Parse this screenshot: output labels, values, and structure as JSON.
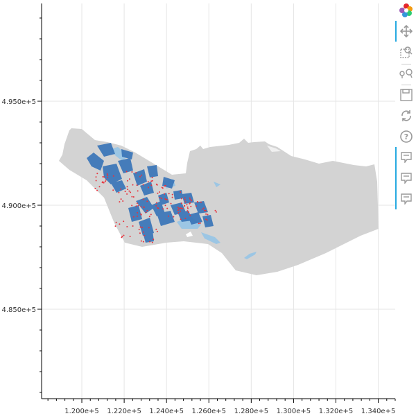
{
  "chart_data": {
    "type": "map",
    "x_ticks": [
      "1.200e+5",
      "1.220e+5",
      "1.240e+5",
      "1.260e+5",
      "1.280e+5",
      "1.300e+5",
      "1.320e+5",
      "1.340e+5"
    ],
    "x_tick_values": [
      120000,
      122000,
      124000,
      126000,
      128000,
      130000,
      132000,
      134000
    ],
    "y_ticks": [
      "4.950e+5",
      "4.900e+5",
      "4.850e+5"
    ],
    "y_tick_values": [
      495000,
      490000,
      485000
    ],
    "xlim": [
      118100,
      134800
    ],
    "ylim": [
      480700,
      499700
    ],
    "grid": true,
    "layers": [
      {
        "name": "region",
        "color": "#d3d3d3"
      },
      {
        "name": "parcels",
        "color": "#3a75b8"
      },
      {
        "name": "water",
        "color": "#9cc6e4"
      },
      {
        "name": "points",
        "color": "#e8323c"
      }
    ]
  },
  "toolbar": {
    "tools": [
      {
        "name": "bokeh-logo-icon"
      },
      {
        "name": "pan-icon",
        "active": true
      },
      {
        "name": "box-zoom-icon"
      },
      {
        "name": "wheel-zoom-icon"
      },
      {
        "name": "save-icon"
      },
      {
        "name": "reset-icon"
      },
      {
        "name": "help-icon"
      },
      {
        "name": "hover-icon",
        "active": true
      },
      {
        "name": "hover-icon",
        "active": true
      },
      {
        "name": "hover-icon",
        "active": true
      }
    ]
  }
}
